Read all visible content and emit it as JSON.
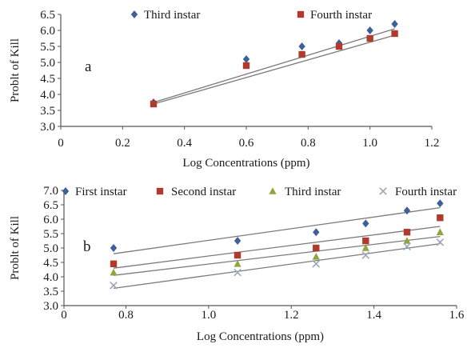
{
  "chart_data": [
    {
      "type": "scatter",
      "panel_label": "a",
      "xlabel": "Log Concentrations (ppm)",
      "ylabel": "Problt of Kill",
      "xlim": [
        0,
        1.2
      ],
      "ylim": [
        3.0,
        6.5
      ],
      "x_ticks": [
        0,
        0.2,
        0.4,
        0.6,
        0.8,
        1.0,
        1.2
      ],
      "x_tick_labels": [
        "0",
        "0.2",
        "0.4",
        "0.6",
        "0.8",
        "1.0",
        "1.2"
      ],
      "y_ticks": [
        3.0,
        3.5,
        4.0,
        4.5,
        5.0,
        5.5,
        6.0,
        6.5
      ],
      "y_tick_labels": [
        "3.0",
        "3.5",
        "4.0",
        "4.5",
        "5.0",
        "5.5",
        "6.0",
        "6.5"
      ],
      "legend_position": "top",
      "series": [
        {
          "name": "Third instar",
          "marker": "diamond",
          "color": "#3d5f9a",
          "points": [
            [
              0.3,
              3.75
            ],
            [
              0.6,
              5.1
            ],
            [
              0.78,
              5.5
            ],
            [
              0.9,
              5.6
            ],
            [
              1.0,
              6.0
            ],
            [
              1.08,
              6.2
            ]
          ],
          "trendline": [
            [
              0.3,
              3.75
            ],
            [
              1.08,
              6.05
            ]
          ]
        },
        {
          "name": "Fourth instar",
          "marker": "square",
          "color": "#b03a2e",
          "points": [
            [
              0.3,
              3.7
            ],
            [
              0.6,
              4.9
            ],
            [
              0.78,
              5.25
            ],
            [
              0.9,
              5.5
            ],
            [
              1.0,
              5.75
            ],
            [
              1.08,
              5.9
            ]
          ],
          "trendline": [
            [
              0.3,
              3.7
            ],
            [
              1.08,
              5.85
            ]
          ]
        }
      ]
    },
    {
      "type": "scatter",
      "panel_label": "b",
      "xlabel": "Log Concentrations (ppm)",
      "ylabel": "Problt of Kill",
      "xlim": [
        0.65,
        1.6
      ],
      "ylim": [
        3.0,
        7.0
      ],
      "x_ticks": [
        0.65,
        0.8,
        1.0,
        1.2,
        1.4,
        1.6
      ],
      "x_tick_labels": [
        "0",
        "0.8",
        "1.0",
        "1.2",
        "1.4",
        "1.6"
      ],
      "y_ticks": [
        3.0,
        3.5,
        4.0,
        4.5,
        5.0,
        5.5,
        6.0,
        6.5,
        7.0
      ],
      "y_tick_labels": [
        "3.0",
        "3.5",
        "4.0",
        "4.5",
        "5.0",
        "5.5",
        "6.0",
        "6.5",
        "7.0"
      ],
      "legend_position": "top",
      "series": [
        {
          "name": "First instar",
          "marker": "diamond",
          "color": "#3d5f9a",
          "points": [
            [
              0.77,
              5.0
            ],
            [
              1.07,
              5.25
            ],
            [
              1.26,
              5.55
            ],
            [
              1.38,
              5.85
            ],
            [
              1.48,
              6.3
            ],
            [
              1.56,
              6.55
            ]
          ],
          "trendline": [
            [
              0.77,
              4.8
            ],
            [
              1.56,
              6.4
            ]
          ]
        },
        {
          "name": "Second instar",
          "marker": "square",
          "color": "#b03a2e",
          "points": [
            [
              0.77,
              4.45
            ],
            [
              1.07,
              4.75
            ],
            [
              1.26,
              5.0
            ],
            [
              1.38,
              5.25
            ],
            [
              1.48,
              5.55
            ],
            [
              1.56,
              6.05
            ]
          ],
          "trendline": [
            [
              0.77,
              4.3
            ],
            [
              1.56,
              5.75
            ]
          ]
        },
        {
          "name": "Third instar",
          "marker": "triangle",
          "color": "#8fa640",
          "points": [
            [
              0.77,
              4.15
            ],
            [
              1.07,
              4.45
            ],
            [
              1.26,
              4.7
            ],
            [
              1.38,
              5.0
            ],
            [
              1.48,
              5.25
            ],
            [
              1.56,
              5.55
            ]
          ],
          "trendline": [
            [
              0.77,
              4.05
            ],
            [
              1.56,
              5.4
            ]
          ]
        },
        {
          "name": "Fourth instar",
          "marker": "cross",
          "color": "#9aa7bb",
          "points": [
            [
              0.77,
              3.7
            ],
            [
              1.07,
              4.15
            ],
            [
              1.26,
              4.45
            ],
            [
              1.38,
              4.75
            ],
            [
              1.48,
              5.05
            ],
            [
              1.56,
              5.2
            ]
          ],
          "trendline": [
            [
              0.77,
              3.6
            ],
            [
              1.56,
              5.15
            ]
          ]
        }
      ]
    }
  ]
}
